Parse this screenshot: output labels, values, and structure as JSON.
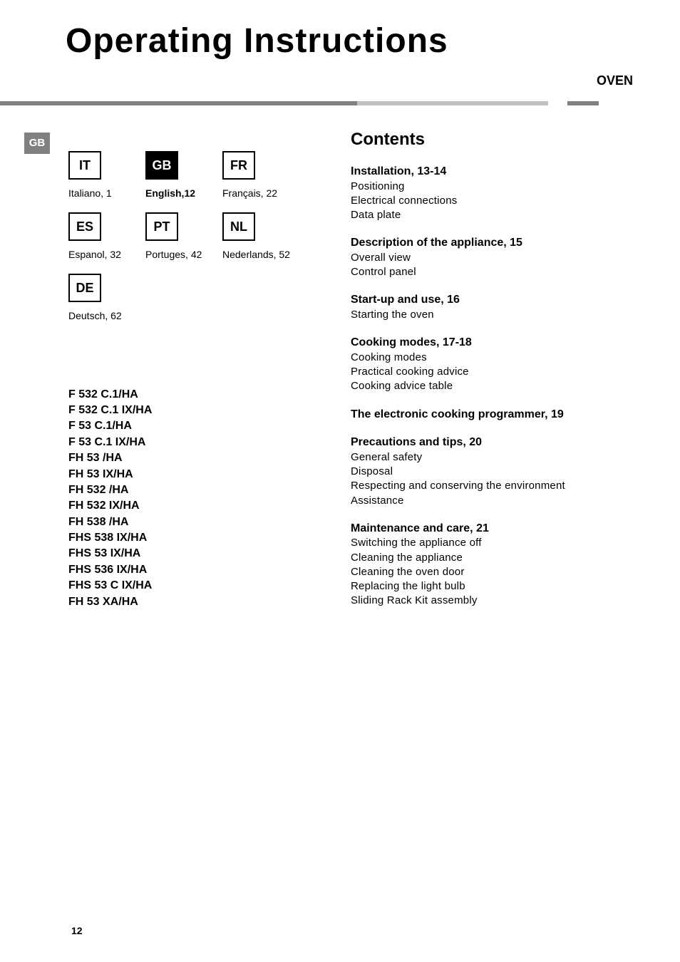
{
  "title": "Operating Instructions",
  "product_type": "OVEN",
  "gb_tab": "GB",
  "separator_colors": [
    "#808080",
    "#bfbfbf",
    "#ffffff",
    "#808080",
    "#ffffff"
  ],
  "languages": [
    {
      "code": "IT",
      "label": "Italiano, 1",
      "active": false
    },
    {
      "code": "GB",
      "label": "English,12",
      "active": true
    },
    {
      "code": "FR",
      "label": "Français, 22",
      "active": false
    },
    {
      "code": "ES",
      "label": "Espanol, 32",
      "active": false
    },
    {
      "code": "PT",
      "label": "Portuges, 42",
      "active": false
    },
    {
      "code": "NL",
      "label": "Nederlands, 52",
      "active": false
    },
    {
      "code": "DE",
      "label": "Deutsch, 62",
      "active": false
    }
  ],
  "models": [
    "F 532 C.1/HA",
    "F 532 C.1 IX/HA",
    "F 53 C.1/HA",
    "F 53 C.1 IX/HA",
    "FH 53 /HA",
    "FH 53 IX/HA",
    "FH 532 /HA",
    "FH 532 IX/HA",
    "FH 538 /HA",
    "FHS 538 IX/HA",
    "FHS 53 IX/HA",
    "FHS 536 IX/HA",
    "FHS 53 C IX/HA",
    "FH 53 XA/HA"
  ],
  "contents_heading": "Contents",
  "contents": [
    {
      "heading": "Installation, 13-14",
      "items": [
        "Positioning",
        "Electrical connections",
        "Data plate"
      ]
    },
    {
      "heading": "Description of the appliance, 15",
      "items": [
        "Overall view",
        "Control panel"
      ]
    },
    {
      "heading": "Start-up and use, 16",
      "items": [
        "Starting the oven"
      ]
    },
    {
      "heading": "Cooking modes, 17-18",
      "items": [
        "Cooking modes",
        "Practical cooking advice",
        "Cooking advice table"
      ]
    },
    {
      "heading": "The electronic cooking programmer, 19",
      "items": []
    },
    {
      "heading": "Precautions and tips, 20",
      "items": [
        "General safety",
        "Disposal",
        "Respecting and conserving the environment",
        "Assistance"
      ]
    },
    {
      "heading": "Maintenance and care, 21",
      "items": [
        "Switching the appliance off",
        "Cleaning the appliance",
        "Cleaning the oven door",
        "Replacing the light bulb",
        "Sliding Rack Kit assembly"
      ]
    }
  ],
  "page_number": "12",
  "colors": {
    "text": "#000000",
    "background": "#ffffff",
    "tab_bg": "#808080",
    "tab_fg": "#ffffff",
    "box_border": "#000000",
    "active_box_bg": "#000000",
    "active_box_fg": "#ffffff"
  },
  "fonts": {
    "title_size_pt": 36,
    "heading_size_pt": 18,
    "body_size_pt": 11,
    "family": "Helvetica"
  }
}
